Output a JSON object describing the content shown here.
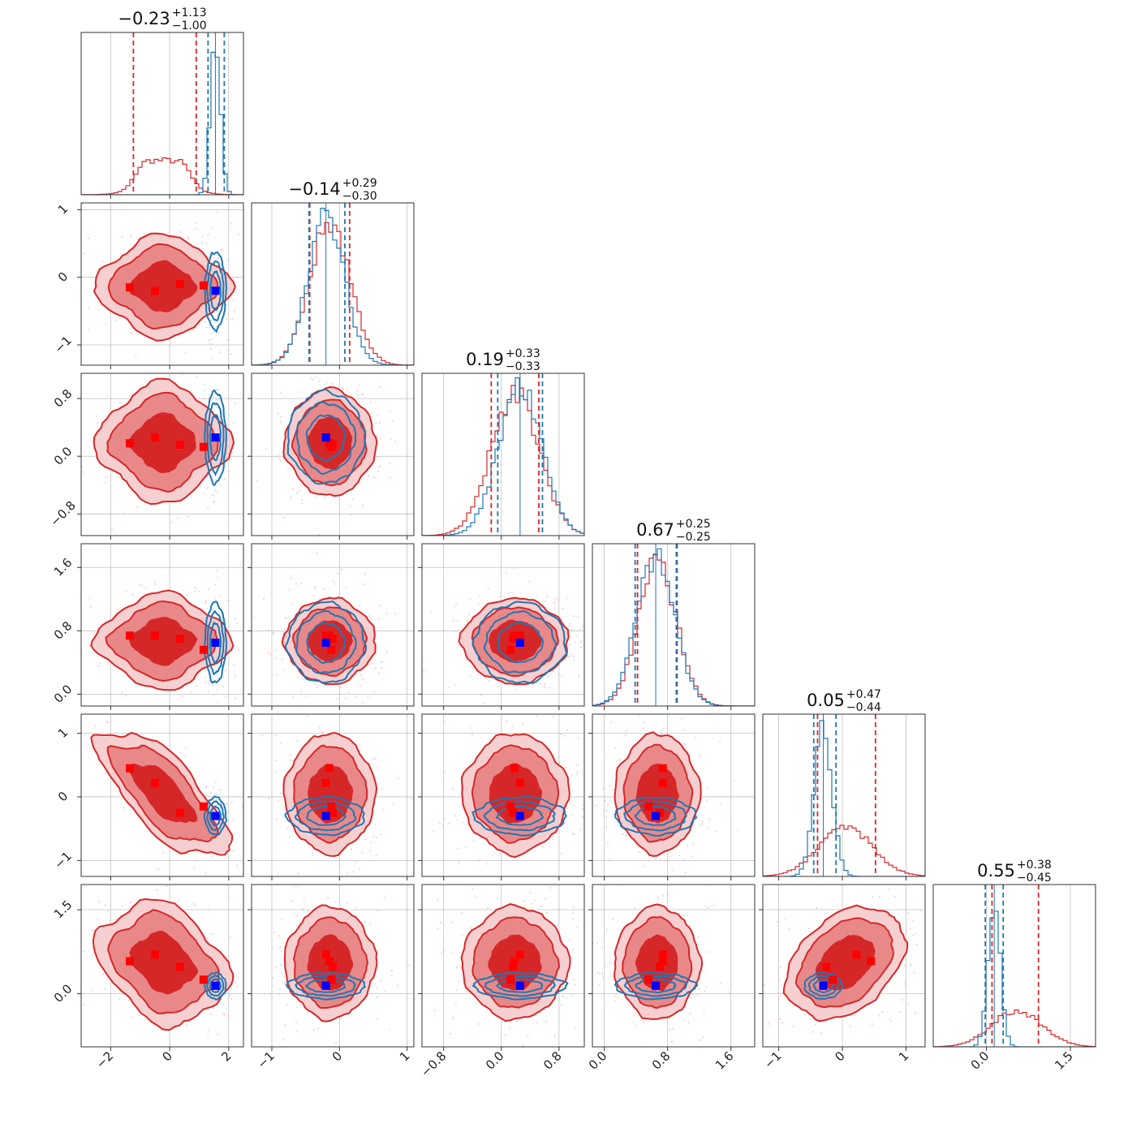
{
  "chart_data": {
    "type": "corner",
    "colors": {
      "primary": "#d62728",
      "secondary": "#1f77b4",
      "marker_primary": "#ff0000",
      "marker_secondary": "#0000ff"
    },
    "grid": true,
    "parameters": [
      {
        "range": [
          -3.0,
          2.5
        ],
        "ticks": [
          -2,
          0,
          2
        ],
        "ticklabels": [
          "−2",
          "0",
          "2"
        ],
        "title": {
          "median": "−0.23",
          "plus": "+1.13",
          "minus": "−1.00"
        },
        "red": {
          "median": -0.23,
          "lo": -1.23,
          "hi": 0.9,
          "sd": 0.95,
          "hist": "flat"
        },
        "blue": {
          "median": 1.55,
          "lo": 1.3,
          "hi": 1.85,
          "sd": 0.17
        },
        "markers_red": [
          -1.35,
          -0.5,
          0.35,
          1.15
        ],
        "marker_blue": 1.55
      },
      {
        "range": [
          -1.3,
          1.1
        ],
        "ticks": [
          -1,
          0,
          1
        ],
        "ticklabels": [
          "−1",
          "0",
          "1"
        ],
        "title": {
          "median": "−0.14",
          "plus": "+0.29",
          "minus": "−0.30"
        },
        "red": {
          "median": -0.14,
          "lo": -0.44,
          "hi": 0.15,
          "sd": 0.3
        },
        "blue": {
          "median": -0.2,
          "lo": -0.45,
          "hi": 0.08,
          "sd": 0.27
        },
        "markers_red": [
          -0.15,
          -0.2,
          -0.1,
          -0.12
        ],
        "marker_blue": -0.2
      },
      {
        "range": [
          -1.1,
          1.15
        ],
        "ticks": [
          -0.8,
          0.0,
          0.8
        ],
        "ticklabels": [
          "−0.8",
          "0.0",
          "0.8"
        ],
        "title": {
          "median": "0.19",
          "plus": "+0.33",
          "minus": "−0.33"
        },
        "red": {
          "median": 0.19,
          "lo": -0.14,
          "hi": 0.52,
          "sd": 0.33
        },
        "blue": {
          "median": 0.26,
          "lo": -0.05,
          "hi": 0.57,
          "sd": 0.3
        },
        "markers_red": [
          0.18,
          0.26,
          0.16,
          0.13
        ],
        "marker_blue": 0.26
      },
      {
        "range": [
          -0.15,
          1.9
        ],
        "ticks": [
          0.0,
          0.8,
          1.6
        ],
        "ticklabels": [
          "0.0",
          "0.8",
          "1.6"
        ],
        "title": {
          "median": "0.67",
          "plus": "+0.25",
          "minus": "−0.25"
        },
        "red": {
          "median": 0.67,
          "lo": 0.42,
          "hi": 0.92,
          "sd": 0.24
        },
        "blue": {
          "median": 0.65,
          "lo": 0.39,
          "hi": 0.91,
          "sd": 0.24
        },
        "markers_red": [
          0.74,
          0.74,
          0.7,
          0.56
        ],
        "marker_blue": 0.65
      },
      {
        "range": [
          -1.25,
          1.3
        ],
        "ticks": [
          -1,
          0,
          1
        ],
        "ticklabels": [
          "−1",
          "0",
          "1"
        ],
        "title": {
          "median": "0.05",
          "plus": "+0.47",
          "minus": "−0.44"
        },
        "red": {
          "median": 0.05,
          "lo": -0.39,
          "hi": 0.52,
          "sd": 0.42
        },
        "blue": {
          "median": -0.3,
          "lo": -0.45,
          "hi": -0.1,
          "sd": 0.14
        },
        "markers_red": [
          0.45,
          0.22,
          -0.25,
          -0.15
        ],
        "marker_blue": -0.3
      },
      {
        "range": [
          -0.95,
          1.95
        ],
        "ticks": [
          0.0,
          1.5
        ],
        "ticklabels": [
          "0.0",
          "1.5"
        ],
        "title": {
          "median": "0.55",
          "plus": "+0.38",
          "minus": "−0.45"
        },
        "red": {
          "median": 0.55,
          "lo": 0.1,
          "hi": 0.93,
          "sd": 0.45
        },
        "blue": {
          "median": 0.14,
          "lo": -0.02,
          "hi": 0.3,
          "sd": 0.11
        },
        "markers_red": [
          0.58,
          0.7,
          0.48,
          0.25
        ],
        "marker_blue": 0.14
      }
    ]
  }
}
